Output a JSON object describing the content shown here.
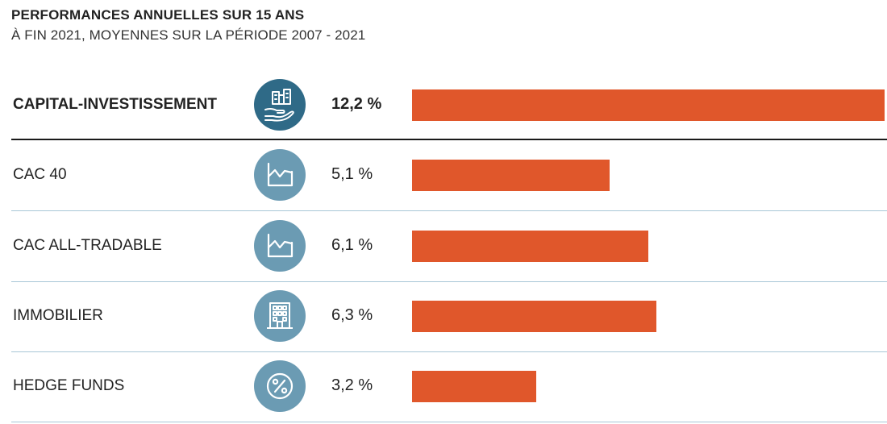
{
  "colors": {
    "bar": "#e0572b",
    "icon_circle_primary": "#2f6a87",
    "icon_circle": "#6b9bb3",
    "icon_stroke": "#ffffff",
    "separator_dark": "#1a1a1a",
    "separator_light": "#a8c6d6"
  },
  "chart_data": {
    "type": "bar",
    "orientation": "horizontal",
    "title": "PERFORMANCES ANNUELLES SUR 15 ANS",
    "subtitle": "À FIN 2021, MOYENNES SUR LA PÉRIODE 2007 - 2021",
    "xlim": [
      0,
      12.2
    ],
    "grid": false,
    "rows": [
      {
        "label": "CAPITAL-INVESTISSEMENT",
        "value": 12.2,
        "value_label": "12,2 %",
        "icon": "hand-holding-buildings-icon",
        "highlight": true
      },
      {
        "label": "CAC 40",
        "value": 5.1,
        "value_label": "5,1 %",
        "icon": "line-chart-icon",
        "highlight": false
      },
      {
        "label": "CAC ALL-TRADABLE",
        "value": 6.1,
        "value_label": "6,1 %",
        "icon": "line-chart-icon",
        "highlight": false
      },
      {
        "label": "IMMOBILIER",
        "value": 6.3,
        "value_label": "6,3 %",
        "icon": "office-building-icon",
        "highlight": false
      },
      {
        "label": "HEDGE FUNDS",
        "value": 3.2,
        "value_label": "3,2 %",
        "icon": "percent-icon",
        "highlight": false
      }
    ]
  }
}
